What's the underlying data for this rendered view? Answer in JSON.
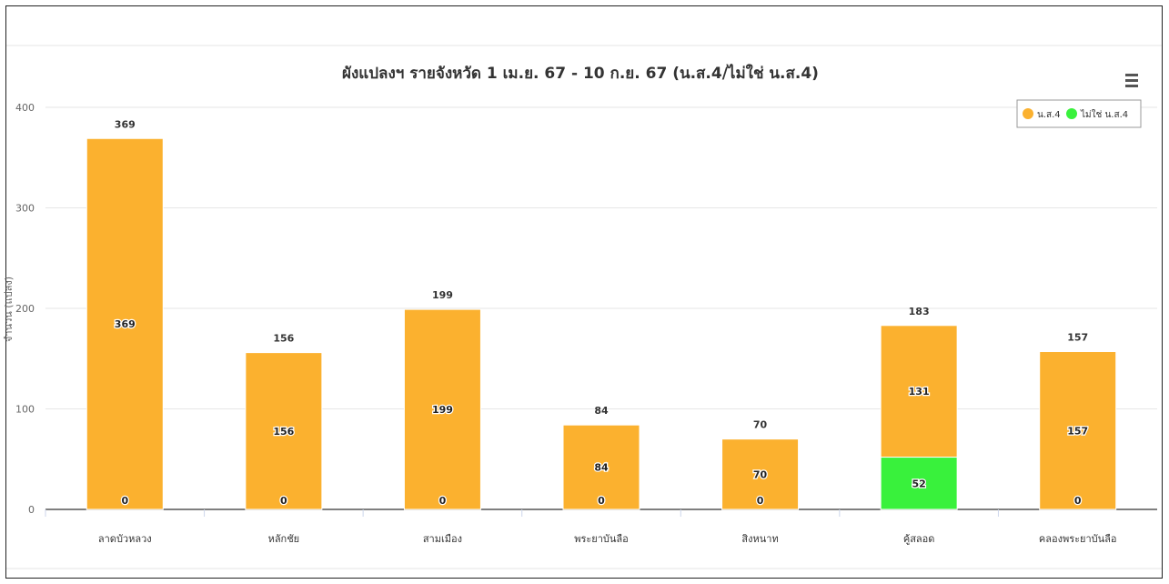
{
  "chart_data": {
    "type": "bar",
    "stacked": true,
    "title": "ผังแปลงฯ รายจังหวัด 1 เม.ย. 67 - 10 ก.ย. 67 (น.ส.4/ไม่ใช่ น.ส.4)",
    "ylabel": "จำนวน (แปลง)",
    "xlabel": "",
    "ylim": [
      0,
      400
    ],
    "yticks": [
      "0",
      "100",
      "200",
      "300",
      "400"
    ],
    "grid": true,
    "legend_position": "top-right",
    "categories": [
      "ลาดบัวหลวง",
      "หลักชัย",
      "สามเมือง",
      "พระยาบันลือ",
      "สิงหนาท",
      "คู้สลอด",
      "คลองพระยาบันลือ"
    ],
    "series": [
      {
        "name": "น.ส.4",
        "color": "#fbb12f",
        "values": [
          369,
          156,
          199,
          84,
          70,
          131,
          157
        ]
      },
      {
        "name": "ไม่ใช่ น.ส.4",
        "color": "#39f13c",
        "values": [
          0,
          0,
          0,
          0,
          0,
          52,
          0
        ]
      }
    ],
    "totals": [
      369,
      156,
      199,
      84,
      70,
      183,
      157
    ]
  },
  "ui": {
    "menu_icon": "hamburger-menu-icon"
  }
}
